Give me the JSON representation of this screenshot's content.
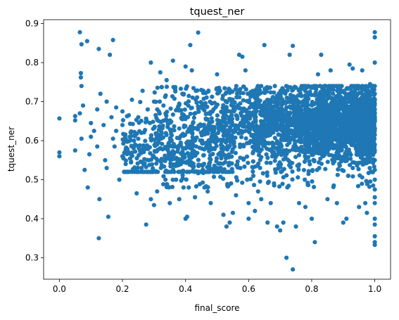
{
  "chart_data": {
    "type": "scatter",
    "title": "tquest_ner",
    "xlabel": "final_score",
    "ylabel": "tquest_ner",
    "xlim": [
      -0.05,
      1.05
    ],
    "ylim": [
      0.245,
      0.91
    ],
    "xticks": [
      0.0,
      0.2,
      0.4,
      0.6,
      0.8,
      1.0
    ],
    "xtick_labels": [
      "0.0",
      "0.2",
      "0.4",
      "0.6",
      "0.8",
      "1.0"
    ],
    "yticks": [
      0.3,
      0.4,
      0.5,
      0.6,
      0.7,
      0.8,
      0.9
    ],
    "ytick_labels": [
      "0.3",
      "0.4",
      "0.5",
      "0.6",
      "0.7",
      "0.8",
      "0.9"
    ],
    "grid": false,
    "legend": "none",
    "marker_color": "#1f77b4",
    "series": [
      {
        "points": [
          [
            0.0,
            0.657
          ],
          [
            0.0,
            0.57
          ],
          [
            0.0,
            0.56
          ],
          [
            0.05,
            0.663
          ],
          [
            0.05,
            0.652
          ],
          [
            0.05,
            0.575
          ],
          [
            0.065,
            0.878
          ],
          [
            0.07,
            0.847
          ],
          [
            0.068,
            0.773
          ],
          [
            0.068,
            0.762
          ],
          [
            0.07,
            0.74
          ],
          [
            0.075,
            0.69
          ],
          [
            0.065,
            0.67
          ],
          [
            0.07,
            0.605
          ],
          [
            0.08,
            0.525
          ],
          [
            0.088,
            0.855
          ],
          [
            0.09,
            0.48
          ],
          [
            0.1,
            0.645
          ],
          [
            0.1,
            0.61
          ],
          [
            0.095,
            0.565
          ],
          [
            0.11,
            0.625
          ],
          [
            0.12,
            0.585
          ],
          [
            0.12,
            0.68
          ],
          [
            0.125,
            0.835
          ],
          [
            0.13,
            0.72
          ],
          [
            0.127,
            0.45
          ],
          [
            0.125,
            0.35
          ],
          [
            0.14,
            0.64
          ],
          [
            0.145,
            0.55
          ],
          [
            0.15,
            0.7
          ],
          [
            0.15,
            0.53
          ],
          [
            0.16,
            0.82
          ],
          [
            0.165,
            0.66
          ],
          [
            0.17,
            0.858
          ],
          [
            0.17,
            0.605
          ],
          [
            0.175,
            0.585
          ],
          [
            0.155,
            0.405
          ],
          [
            0.18,
            0.685
          ],
          [
            0.18,
            0.625
          ],
          [
            0.19,
            0.5
          ],
          [
            0.2,
            0.675
          ],
          [
            0.2,
            0.64
          ],
          [
            0.2,
            0.56
          ],
          [
            0.21,
            0.605
          ],
          [
            0.22,
            0.665
          ],
          [
            0.23,
            0.705
          ],
          [
            0.24,
            0.59
          ],
          [
            0.245,
            0.465
          ],
          [
            0.25,
            0.66
          ],
          [
            0.26,
            0.62
          ],
          [
            0.27,
            0.58
          ],
          [
            0.275,
            0.385
          ],
          [
            0.28,
            0.68
          ],
          [
            0.285,
            0.55
          ],
          [
            0.29,
            0.8
          ],
          [
            0.29,
            0.45
          ],
          [
            0.3,
            0.435
          ],
          [
            0.3,
            0.7
          ],
          [
            0.31,
            0.47
          ],
          [
            0.32,
            0.775
          ],
          [
            0.33,
            0.69
          ],
          [
            0.34,
            0.755
          ],
          [
            0.35,
            0.44
          ],
          [
            0.36,
            0.805
          ],
          [
            0.37,
            0.5
          ],
          [
            0.38,
            0.45
          ],
          [
            0.39,
            0.72
          ],
          [
            0.4,
            0.79
          ],
          [
            0.4,
            0.4
          ],
          [
            0.405,
            0.405
          ],
          [
            0.41,
            0.48
          ],
          [
            0.415,
            0.845
          ],
          [
            0.42,
            0.78
          ],
          [
            0.43,
            0.455
          ],
          [
            0.44,
            0.877
          ],
          [
            0.45,
            0.73
          ],
          [
            0.46,
            0.48
          ],
          [
            0.47,
            0.47
          ],
          [
            0.48,
            0.44
          ],
          [
            0.5,
            0.77
          ],
          [
            0.52,
            0.41
          ],
          [
            0.53,
            0.38
          ],
          [
            0.54,
            0.39
          ],
          [
            0.55,
            0.415
          ],
          [
            0.56,
            0.46
          ],
          [
            0.57,
            0.82
          ],
          [
            0.58,
            0.815
          ],
          [
            0.59,
            0.78
          ],
          [
            0.6,
            0.44
          ],
          [
            0.6,
            0.4
          ],
          [
            0.62,
            0.42
          ],
          [
            0.63,
            0.47
          ],
          [
            0.64,
            0.45
          ],
          [
            0.65,
            0.845
          ],
          [
            0.66,
            0.39
          ],
          [
            0.67,
            0.44
          ],
          [
            0.69,
            0.38
          ],
          [
            0.7,
            0.37
          ],
          [
            0.71,
            0.39
          ],
          [
            0.72,
            0.3
          ],
          [
            0.73,
            0.82
          ],
          [
            0.74,
            0.843
          ],
          [
            0.74,
            0.27
          ],
          [
            0.75,
            0.38
          ],
          [
            0.76,
            0.44
          ],
          [
            0.78,
            0.43
          ],
          [
            0.8,
            0.4
          ],
          [
            0.81,
            0.34
          ],
          [
            0.82,
            0.77
          ],
          [
            0.83,
            0.82
          ],
          [
            0.85,
            0.45
          ],
          [
            0.86,
            0.78
          ],
          [
            0.88,
            0.44
          ],
          [
            0.9,
            0.39
          ],
          [
            0.91,
            0.4
          ],
          [
            0.92,
            0.795
          ],
          [
            0.93,
            0.785
          ],
          [
            0.95,
            0.43
          ],
          [
            0.96,
            0.78
          ],
          [
            0.97,
            0.44
          ],
          [
            0.975,
            0.415
          ],
          [
            0.985,
            0.745
          ],
          [
            0.99,
            0.52
          ],
          [
            0.995,
            0.485
          ],
          [
            1.0,
            0.878
          ],
          [
            1.0,
            0.865
          ],
          [
            1.0,
            0.8
          ],
          [
            1.0,
            0.705
          ],
          [
            1.0,
            0.68
          ],
          [
            1.0,
            0.63
          ],
          [
            1.0,
            0.59
          ],
          [
            1.0,
            0.55
          ],
          [
            1.0,
            0.5
          ],
          [
            1.0,
            0.475
          ],
          [
            1.0,
            0.455
          ],
          [
            1.0,
            0.44
          ],
          [
            1.0,
            0.4
          ],
          [
            1.0,
            0.385
          ],
          [
            1.0,
            0.355
          ],
          [
            1.0,
            0.34
          ],
          [
            1.0,
            0.333
          ],
          [
            1.0,
            0.525
          ],
          [
            1.0,
            0.66
          ],
          [
            1.0,
            0.74
          ],
          [
            1.0,
            0.72
          ],
          [
            1.0,
            0.705
          ],
          [
            1.0,
            0.695
          ],
          [
            1.0,
            0.615
          ],
          [
            1.0,
            0.575
          ]
        ],
        "cloud": {
          "description": "dense cluster of several thousand points",
          "x_range": [
            0.3,
            1.0
          ],
          "y_range": [
            0.54,
            0.74
          ],
          "x_mean": 0.72,
          "y_mean": 0.645
        }
      }
    ]
  }
}
